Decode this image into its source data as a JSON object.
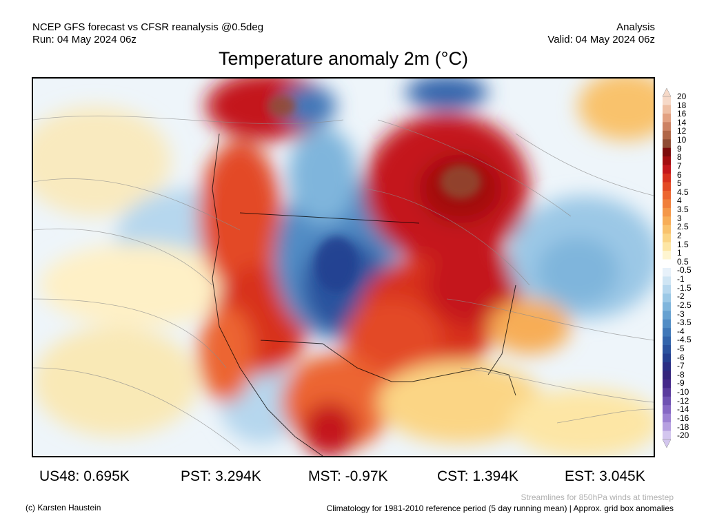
{
  "header": {
    "line1": "NCEP GFS forecast vs CFSR reanalysis @0.5deg",
    "line2": "Run: 04 May 2024 06z",
    "right1": "Analysis",
    "right2": "Valid: 04 May 2024 06z"
  },
  "title": "Temperature anomaly 2m (°C)",
  "stats": [
    {
      "label": "US48: 0.695K"
    },
    {
      "label": "PST: 3.294K"
    },
    {
      "label": "MST: -0.97K"
    },
    {
      "label": "CST: 1.394K"
    },
    {
      "label": "EST: 3.045K"
    }
  ],
  "footer": {
    "copyright": "(c) Karsten Haustein",
    "streamlines": "Streamlines for 850hPa winds at timestep",
    "climatology": "Climatology for 1981-2010 reference period (5 day running mean) | Approx. grid box anomalies"
  },
  "colorbar": {
    "labels": [
      "20",
      "18",
      "16",
      "14",
      "12",
      "10",
      "9",
      "8",
      "7",
      "6",
      "5",
      "4.5",
      "4",
      "3.5",
      "3",
      "2.5",
      "2",
      "1.5",
      "1",
      "0.5",
      "-0.5",
      "-1",
      "-1.5",
      "-2",
      "-2.5",
      "-3",
      "-3.5",
      "-4",
      "-4.5",
      "-5",
      "-6",
      "-7",
      "-8",
      "-9",
      "-10",
      "-12",
      "-14",
      "-16",
      "-18",
      "-20"
    ],
    "colors": [
      "#f6d9c8",
      "#eebfa4",
      "#e2a181",
      "#cc8263",
      "#b06647",
      "#8f4b33",
      "#7c0b0b",
      "#a30d10",
      "#c4161b",
      "#d8301e",
      "#e34a25",
      "#ec6530",
      "#f07f3b",
      "#f49748",
      "#f7ad57",
      "#f9c26c",
      "#fbd585",
      "#fde6a5",
      "#fef5d0",
      "#ffffff",
      "#e7f1fa",
      "#cfe5f4",
      "#b6d7ee",
      "#9bc8e6",
      "#7fb5dc",
      "#66a1d1",
      "#518cc5",
      "#3f77b8",
      "#3264ab",
      "#2a529e",
      "#243f90",
      "#2a2d84",
      "#35257c",
      "#45288a",
      "#5a3b9d",
      "#6f52b2",
      "#8668c4",
      "#9d82d3",
      "#b6a0e0",
      "#d3c6ee"
    ]
  }
}
